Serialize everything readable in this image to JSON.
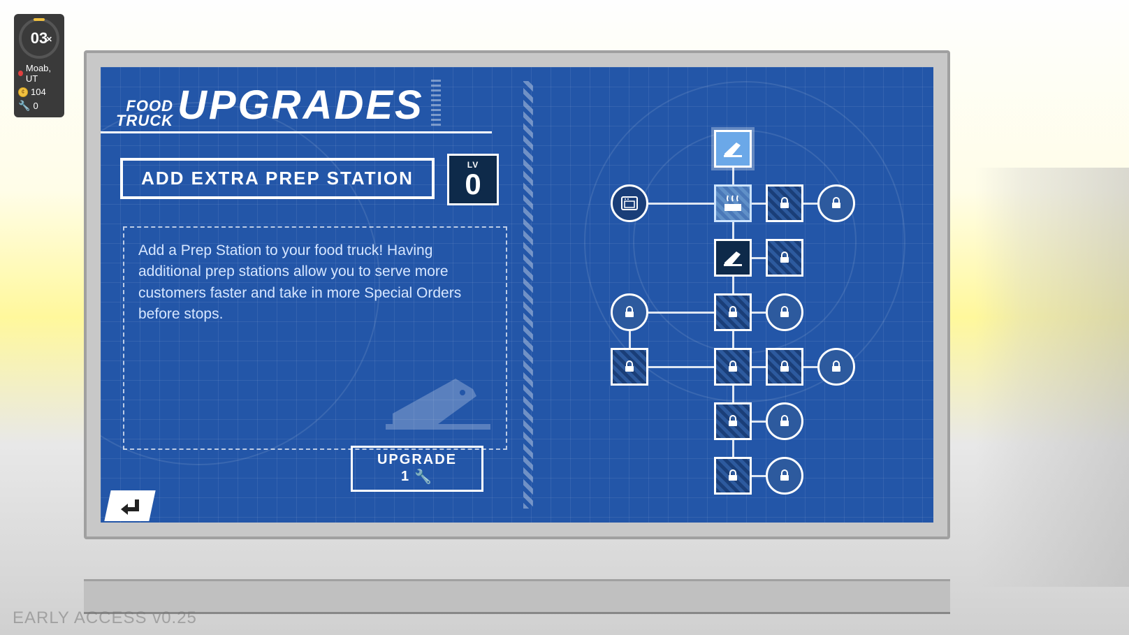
{
  "hud": {
    "time": "03",
    "timeSfx": "⏱",
    "location": "Moab, UT",
    "coins": "104",
    "parts": "0"
  },
  "title": {
    "small1": "FOOD",
    "small2": "TRUCK",
    "big": "UPGRADES"
  },
  "detail": {
    "name": "ADD EXTRA PREP STATION",
    "lvLabel": "LV",
    "lvValue": "0",
    "description": "Add a Prep Station to your food truck! Having additional prep stations allow you to serve more customers faster and take in more Special Orders before stops.",
    "upgradeLabel": "UPGRADE",
    "upgradeCost": "1"
  },
  "version": "EARLY ACCESS v0.25",
  "colors": {
    "blueprint": "#2356a8",
    "darkBox": "#0e2a4a",
    "selectedNode": "#6ba8e8",
    "white": "#ffffff"
  },
  "tree": {
    "nodeSize": 54,
    "col": {
      "c0": 10,
      "c1": 84,
      "c2": 158,
      "c3": 232,
      "c4": 306
    },
    "row": {
      "r0": 0,
      "r1": 78,
      "r2": 156,
      "r3": 234,
      "r4": 312,
      "r5": 390,
      "r6": 468
    },
    "nodes": [
      {
        "id": "n0",
        "shape": "square",
        "state": "selected",
        "icon": "cleaver",
        "col": "c2",
        "row": "r0"
      },
      {
        "id": "n1",
        "shape": "circle",
        "state": "available",
        "icon": "oven",
        "col": "c0",
        "row": "r1"
      },
      {
        "id": "n2",
        "shape": "square",
        "state": "highlight",
        "icon": "grill",
        "col": "c2",
        "row": "r1"
      },
      {
        "id": "n3",
        "shape": "square",
        "state": "locked",
        "icon": "lock",
        "col": "c3",
        "row": "r1"
      },
      {
        "id": "n4",
        "shape": "circle",
        "state": "locked",
        "icon": "lock",
        "col": "c4",
        "row": "r1"
      },
      {
        "id": "n5",
        "shape": "square",
        "state": "active",
        "icon": "cleaver",
        "col": "c2",
        "row": "r2"
      },
      {
        "id": "n6",
        "shape": "square",
        "state": "locked",
        "icon": "lock",
        "col": "c3",
        "row": "r2"
      },
      {
        "id": "n7",
        "shape": "circle",
        "state": "locked",
        "icon": "lock",
        "col": "c0",
        "row": "r3"
      },
      {
        "id": "n8",
        "shape": "square",
        "state": "locked",
        "icon": "lock",
        "col": "c2",
        "row": "r3"
      },
      {
        "id": "n9",
        "shape": "circle",
        "state": "locked",
        "icon": "lock",
        "col": "c3",
        "row": "r3"
      },
      {
        "id": "n10",
        "shape": "square",
        "state": "locked",
        "icon": "lock",
        "col": "c0",
        "row": "r4"
      },
      {
        "id": "n11",
        "shape": "square",
        "state": "locked",
        "icon": "lock",
        "col": "c2",
        "row": "r4"
      },
      {
        "id": "n12",
        "shape": "square",
        "state": "locked",
        "icon": "lock",
        "c": 232,
        "col": "c3",
        "row": "r4"
      },
      {
        "id": "n13",
        "shape": "circle",
        "state": "locked",
        "icon": "lock",
        "col": "c4",
        "row": "r4"
      },
      {
        "id": "n14",
        "shape": "square",
        "state": "locked",
        "icon": "lock",
        "col": "c2",
        "row": "r5"
      },
      {
        "id": "n15",
        "shape": "circle",
        "state": "locked",
        "icon": "lock",
        "col": "c3",
        "row": "r5"
      },
      {
        "id": "n16",
        "shape": "square",
        "state": "locked",
        "icon": "lock",
        "col": "c2",
        "row": "r6"
      },
      {
        "id": "n17",
        "shape": "circle",
        "state": "locked",
        "icon": "lock",
        "col": "c3",
        "row": "r6"
      }
    ],
    "edges": [
      {
        "from": "n0",
        "to": "n2",
        "dir": "v"
      },
      {
        "from": "n1",
        "to": "n2",
        "dir": "h"
      },
      {
        "from": "n2",
        "to": "n3",
        "dir": "h"
      },
      {
        "from": "n3",
        "to": "n4",
        "dir": "h"
      },
      {
        "from": "n2",
        "to": "n5",
        "dir": "v"
      },
      {
        "from": "n5",
        "to": "n6",
        "dir": "h"
      },
      {
        "from": "n5",
        "to": "n8",
        "dir": "v"
      },
      {
        "from": "n7",
        "to": "n8",
        "dir": "h"
      },
      {
        "from": "n8",
        "to": "n9",
        "dir": "h"
      },
      {
        "from": "n8",
        "to": "n11",
        "dir": "v"
      },
      {
        "from": "n7",
        "to": "n10",
        "dir": "v"
      },
      {
        "from": "n10",
        "to": "n11",
        "dir": "h"
      },
      {
        "from": "n11",
        "to": "n12",
        "dir": "h"
      },
      {
        "from": "n12",
        "to": "n13",
        "dir": "h"
      },
      {
        "from": "n11",
        "to": "n14",
        "dir": "v"
      },
      {
        "from": "n14",
        "to": "n15",
        "dir": "h"
      },
      {
        "from": "n14",
        "to": "n16",
        "dir": "v"
      },
      {
        "from": "n16",
        "to": "n17",
        "dir": "h"
      }
    ]
  }
}
